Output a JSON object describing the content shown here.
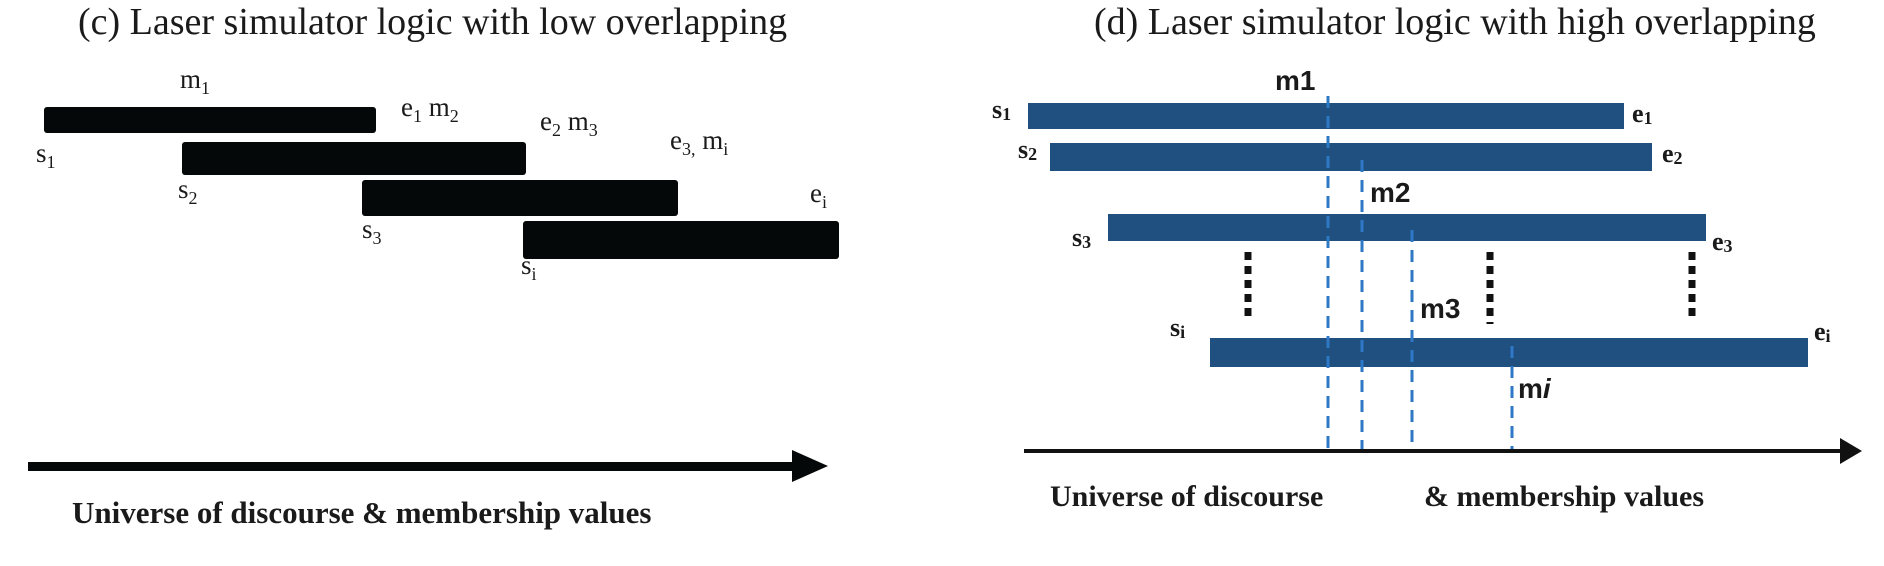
{
  "panel_c": {
    "title": "(c) Laser simulator logic with low overlapping",
    "bar_color": "#050808",
    "labels": {
      "m1": {
        "base": "m",
        "sub": "1"
      },
      "e1m2": {
        "b1": "e",
        "s1": "1",
        "b2": " m",
        "s2": "2"
      },
      "e2m3": {
        "b1": "e",
        "s1": "2",
        "b2": " m",
        "s2": "3"
      },
      "e3mi": {
        "b1": "e",
        "s1": "3,",
        "b2": " m",
        "s2": "i"
      },
      "ei": {
        "base": "e",
        "sub": "i"
      },
      "s1": {
        "base": "s",
        "sub": "1"
      },
      "s2": {
        "base": "s",
        "sub": "2"
      },
      "s3": {
        "base": "s",
        "sub": "3"
      },
      "si": {
        "base": "s",
        "sub": "i"
      }
    },
    "axis_label": "Universe of discourse & membership values"
  },
  "panel_d": {
    "title": "(d) Laser simulator logic with high overlapping",
    "bar_color": "#1f5080",
    "dash_color": "#2f78c6",
    "labels": {
      "m1": "m1",
      "m2": "m2",
      "m3": "m3",
      "mi": {
        "base": "m",
        "ital": "i"
      },
      "s1": {
        "base": "s",
        "sub": "1"
      },
      "s2": {
        "base": "s",
        "sub": "2"
      },
      "s3": {
        "base": "s",
        "sub": "3"
      },
      "si": {
        "base": "s",
        "sub": "i"
      },
      "e1": {
        "base": "e",
        "sub": "1"
      },
      "e2": {
        "base": "e",
        "sub": "2"
      },
      "e3": {
        "base": "e",
        "sub": "3"
      },
      "ei": {
        "base": "e",
        "sub": "i"
      }
    },
    "axis_label_left": "Universe of discourse",
    "axis_label_right": "& membership values"
  }
}
